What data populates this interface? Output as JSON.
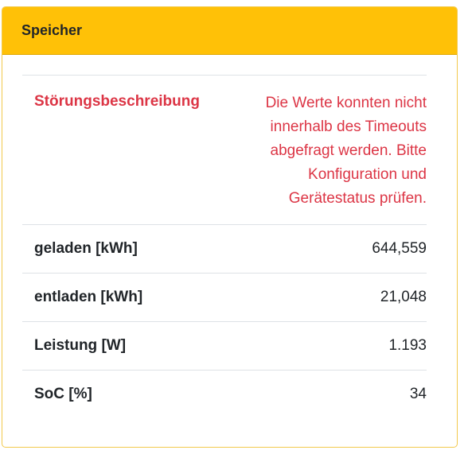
{
  "card": {
    "title": "Speicher"
  },
  "rows": {
    "error": {
      "label": "Störungsbeschreibung",
      "value": "Die Werte konnten nicht innerhalb des Timeouts abgefragt werden. Bitte Konfiguration und Gerätestatus prüfen."
    },
    "charged": {
      "label": "geladen [kWh]",
      "value": "644,559"
    },
    "discharged": {
      "label": "entladen [kWh]",
      "value": "21,048"
    },
    "power": {
      "label": "Leistung [W]",
      "value": "1.193"
    },
    "soc": {
      "label": "SoC [%]",
      "value": "34"
    }
  },
  "colors": {
    "header_bg": "#ffc107",
    "error_text": "#dc3545",
    "border": "#dee2e6"
  }
}
